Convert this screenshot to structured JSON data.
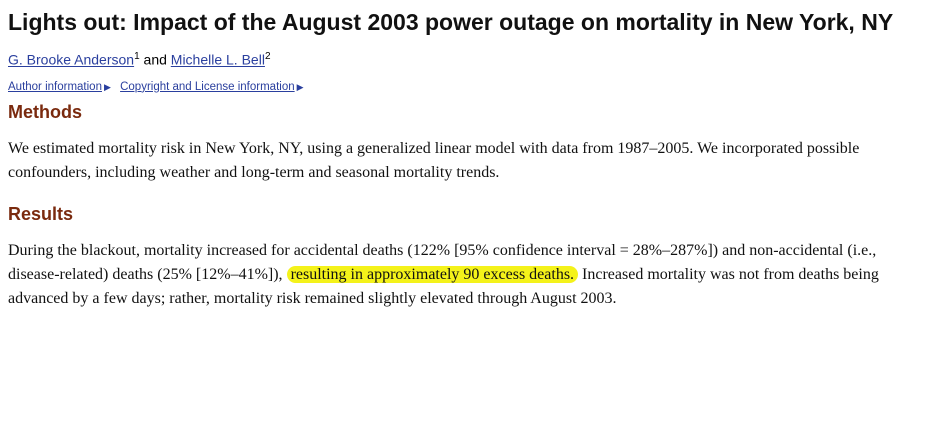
{
  "title": "Lights out: Impact of the August 2003 power outage on mortality in New York, NY",
  "authors": [
    {
      "name": "G. Brooke Anderson",
      "sup": "1"
    },
    {
      "name": "Michelle L. Bell",
      "sup": "2"
    }
  ],
  "authors_join": " and ",
  "meta_links": {
    "author_info": "Author information",
    "copyright": "Copyright and License information"
  },
  "methods": {
    "heading": "Methods",
    "text": "We estimated mortality risk in New York, NY, using a generalized linear model with data from 1987–2005. We incorporated possible confounders, including weather and long-term and seasonal mortality trends."
  },
  "results": {
    "heading": "Results",
    "text_before": "During the blackout, mortality increased for accidental deaths (122% [95% confidence interval = 28%–287%]) and non-accidental (i.e., disease-related) deaths (25% [12%–41%]), ",
    "text_highlight": "resulting in approximately 90 excess deaths.",
    "text_after": " Increased mortality was not from deaths being advanced by a few days; rather, mortality risk remained slightly elevated through August 2003.",
    "highlight_color": "#f4f21a"
  },
  "colors": {
    "heading": "#7a2a0e",
    "link": "#2a3f9e"
  }
}
